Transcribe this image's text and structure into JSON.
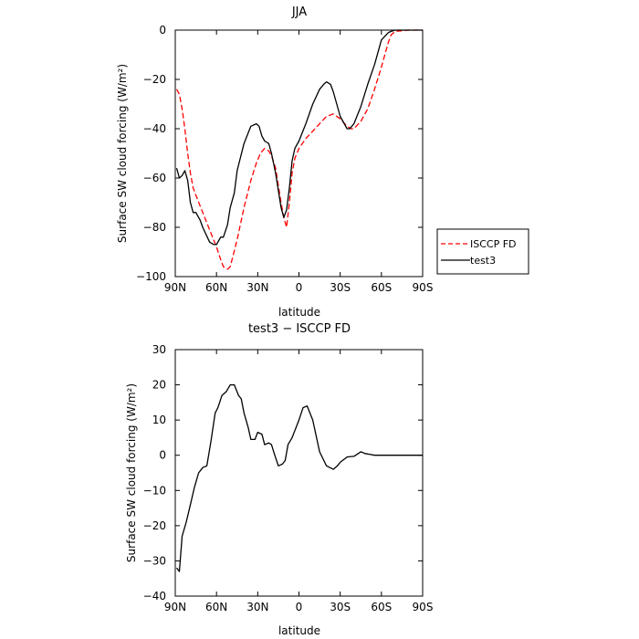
{
  "chart_data": [
    {
      "type": "line",
      "title": "JJA",
      "xlabel": "latitude",
      "ylabel": "Surface SW cloud forcing (W/m²)",
      "xlim": [
        90,
        -90
      ],
      "ylim": [
        -100,
        0
      ],
      "x_ticks": [
        90,
        60,
        30,
        0,
        -30,
        -60,
        -90
      ],
      "x_tick_labels": [
        "90N",
        "60N",
        "30N",
        "0",
        "30S",
        "60S",
        "90S"
      ],
      "y_ticks": [
        0,
        -20,
        -40,
        -60,
        -80,
        -100
      ],
      "y_tick_labels": [
        "0",
        "−20",
        "−40",
        "−60",
        "−80",
        "−100"
      ],
      "grid": false,
      "legend_position": "right-outside",
      "series": [
        {
          "name": "ISCCP FD",
          "color": "#ff0000",
          "dash": "dashed",
          "x": [
            89,
            87,
            85,
            83,
            81,
            79,
            77,
            75,
            70,
            65,
            60,
            57,
            55,
            52,
            50,
            45,
            40,
            35,
            31,
            28,
            25,
            22,
            20,
            17,
            15,
            13,
            11,
            9,
            7,
            5,
            3,
            0,
            -5,
            -10,
            -15,
            -20,
            -25,
            -30,
            -35,
            -38,
            -40,
            -45,
            -50,
            -55,
            -60,
            -65,
            -67,
            -70,
            -80,
            -90
          ],
          "y": [
            -24,
            -26,
            -32,
            -40,
            -50,
            -58,
            -64,
            -67,
            -74,
            -81,
            -88,
            -93,
            -96,
            -97,
            -96,
            -85,
            -72,
            -61,
            -54,
            -50,
            -48,
            -49,
            -51,
            -56,
            -63,
            -70,
            -76,
            -80,
            -70,
            -58,
            -52,
            -48,
            -44,
            -41,
            -38,
            -35,
            -34,
            -36,
            -39,
            -40,
            -40,
            -37,
            -32,
            -24,
            -15,
            -5,
            -2,
            -0.5,
            0,
            0
          ]
        },
        {
          "name": "test3",
          "color": "#000000",
          "dash": "solid",
          "x": [
            89,
            87,
            85,
            83,
            81,
            79,
            77,
            75,
            72,
            70,
            65,
            62,
            60,
            58,
            57,
            55,
            52,
            50,
            47,
            45,
            40,
            35,
            31,
            29,
            27,
            25,
            22,
            20,
            17,
            15,
            13,
            11,
            9,
            7,
            5,
            3,
            0,
            -5,
            -10,
            -15,
            -18,
            -20,
            -23,
            -25,
            -30,
            -35,
            -37,
            -40,
            -45,
            -50,
            -55,
            -60,
            -65,
            -67,
            -70,
            -80,
            -90
          ],
          "y": [
            -56,
            -60,
            -59,
            -57,
            -61,
            -70,
            -74,
            -74,
            -77,
            -80,
            -86,
            -87,
            -87,
            -85,
            -84,
            -84,
            -79,
            -72,
            -66,
            -57,
            -46,
            -39,
            -38,
            -39,
            -43,
            -45,
            -46,
            -50,
            -58,
            -65,
            -72,
            -76,
            -73,
            -64,
            -53,
            -48,
            -45,
            -38,
            -30,
            -24,
            -22,
            -21,
            -22,
            -25,
            -35,
            -40,
            -40,
            -38,
            -31,
            -22,
            -14,
            -4,
            -1,
            -0.5,
            0,
            0,
            0
          ]
        }
      ]
    },
    {
      "type": "line",
      "title": "test3 − ISCCP FD",
      "xlabel": "latitude",
      "ylabel": "Surface SW cloud forcing (W/m²)",
      "xlim": [
        90,
        -90
      ],
      "ylim": [
        -40,
        30
      ],
      "x_ticks": [
        90,
        60,
        30,
        0,
        -30,
        -60,
        -90
      ],
      "x_tick_labels": [
        "90N",
        "60N",
        "30N",
        "0",
        "30S",
        "60S",
        "90S"
      ],
      "y_ticks": [
        30,
        20,
        10,
        0,
        -10,
        -20,
        -30,
        -40
      ],
      "y_tick_labels": [
        "30",
        "20",
        "10",
        "0",
        "−10",
        "−20",
        "−30",
        "−40"
      ],
      "grid": false,
      "series": [
        {
          "color": "#000000",
          "dash": "solid",
          "x": [
            89,
            87,
            85,
            82,
            79,
            76,
            73,
            70,
            67,
            64,
            61,
            59,
            56,
            53,
            50,
            47,
            44,
            42,
            40,
            37,
            35,
            32,
            30,
            27,
            25,
            22,
            20,
            18,
            15,
            12,
            10,
            8,
            5,
            3,
            0,
            -3,
            -6,
            -10,
            -15,
            -20,
            -25,
            -28,
            -30,
            -35,
            -40,
            -45,
            -48,
            -52,
            -55,
            -58,
            -60,
            -62,
            -65,
            -70,
            -80,
            -90
          ],
          "y": [
            -32,
            -33,
            -23,
            -19,
            -14,
            -9,
            -5,
            -3.5,
            -3,
            4,
            12,
            13.5,
            17,
            18,
            20,
            20,
            17,
            16,
            12,
            8,
            4.5,
            4.5,
            6.5,
            6,
            3,
            3.5,
            3,
            0.5,
            -3,
            -2.5,
            -1.5,
            3,
            5,
            7,
            10,
            13.5,
            14,
            10,
            1,
            -3,
            -4,
            -3,
            -2,
            -0.5,
            -0.3,
            1,
            0.5,
            0.2,
            0,
            0,
            0,
            0,
            0,
            0,
            0,
            0
          ]
        }
      ]
    }
  ],
  "legend": {
    "entries": [
      "ISCCP FD",
      "test3"
    ]
  }
}
